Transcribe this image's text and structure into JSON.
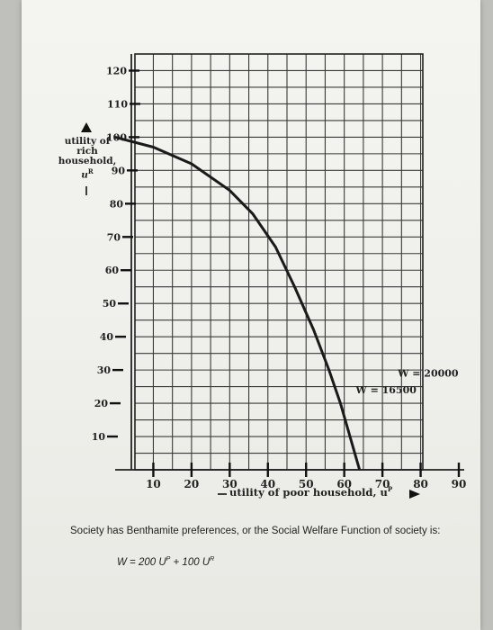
{
  "chart_data": {
    "type": "line",
    "xlabel": "utility of poor household, u",
    "xlabel_superscript": "P",
    "ylabel_lines": [
      "utility of",
      "rich",
      "household,"
    ],
    "ylabel_symbol": "u",
    "ylabel_superscript": "R",
    "x_ticks": [
      10,
      20,
      30,
      40,
      50,
      60,
      70,
      80,
      90
    ],
    "y_ticks": [
      10,
      20,
      30,
      40,
      50,
      60,
      70,
      80,
      90,
      100,
      110,
      120
    ],
    "xlim": [
      0,
      90
    ],
    "ylim": [
      0,
      125
    ],
    "grid": true,
    "series": [
      {
        "x": [
          0,
          10,
          20,
          30,
          36,
          42,
          47,
          52,
          56,
          59,
          61,
          62.5,
          64
        ],
        "y": [
          100,
          97,
          92,
          84,
          77,
          67,
          55,
          42,
          30,
          20,
          12,
          6,
          0
        ]
      }
    ],
    "annotations": [
      {
        "text": "W = 16500",
        "x": 63,
        "y": 23
      },
      {
        "text": "W = 20000",
        "x": 74,
        "y": 28
      }
    ]
  },
  "caption": "Society has Benthamite preferences, or the Social Welfare Function of society is:",
  "formula": {
    "w": "W = 200 U",
    "sup1": "P",
    "mid": " + 100 U",
    "sup2": "R"
  }
}
